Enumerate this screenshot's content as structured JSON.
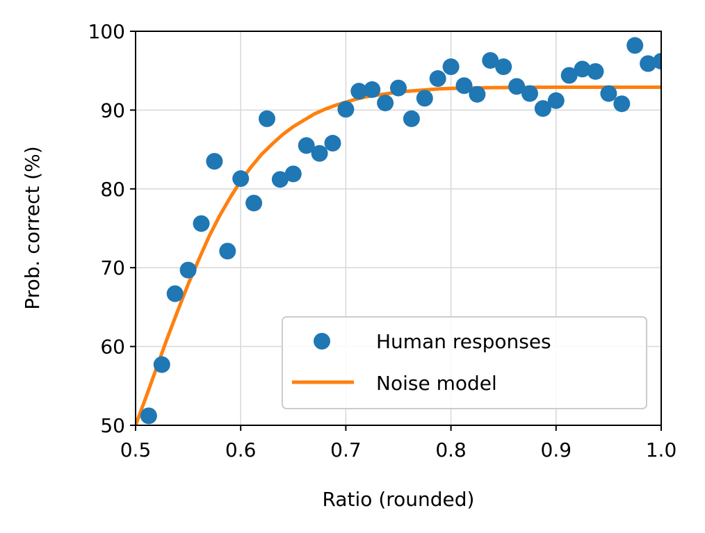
{
  "chart_data": {
    "type": "scatter",
    "title": "",
    "xlabel": "Ratio (rounded)",
    "ylabel": "Prob. correct (%)",
    "xlim": [
      0.5,
      1.0
    ],
    "ylim": [
      50,
      100
    ],
    "xticks": [
      "0.5",
      "0.6",
      "0.7",
      "0.8",
      "0.9",
      "1.0"
    ],
    "yticks": [
      "50",
      "60",
      "70",
      "80",
      "90",
      "100"
    ],
    "grid": true,
    "legend_position": "bottom-right",
    "series": [
      {
        "name": "Human responses",
        "kind": "scatter",
        "color": "#1f77b4",
        "x": [
          0.5125,
          0.525,
          0.5375,
          0.55,
          0.5625,
          0.575,
          0.5875,
          0.6,
          0.6125,
          0.625,
          0.6375,
          0.65,
          0.6625,
          0.675,
          0.6875,
          0.7,
          0.7125,
          0.725,
          0.7375,
          0.75,
          0.7625,
          0.775,
          0.7875,
          0.8,
          0.8125,
          0.825,
          0.8375,
          0.85,
          0.8625,
          0.875,
          0.8875,
          0.9,
          0.9125,
          0.925,
          0.9375,
          0.95,
          0.9625,
          0.975,
          0.9875,
          1.0
        ],
        "y": [
          51.2,
          57.7,
          66.7,
          69.7,
          75.6,
          83.5,
          72.1,
          81.3,
          78.2,
          88.9,
          81.2,
          81.9,
          85.5,
          84.5,
          85.8,
          90.1,
          92.4,
          92.6,
          90.9,
          92.8,
          88.9,
          91.5,
          94.0,
          95.5,
          93.1,
          92.0,
          96.3,
          95.5,
          93.0,
          92.1,
          90.2,
          91.2,
          94.4,
          95.2,
          94.9,
          92.1,
          90.8,
          98.2,
          95.9,
          96.2
        ]
      },
      {
        "name": "Noise model",
        "kind": "line",
        "color": "#ff7f0e",
        "x": [
          0.5,
          0.51,
          0.52,
          0.53,
          0.54,
          0.55,
          0.56,
          0.57,
          0.58,
          0.59,
          0.6,
          0.61,
          0.62,
          0.63,
          0.64,
          0.65,
          0.66,
          0.67,
          0.68,
          0.69,
          0.7,
          0.71,
          0.72,
          0.73,
          0.74,
          0.75,
          0.76,
          0.77,
          0.78,
          0.79,
          0.8,
          0.82,
          0.84,
          0.86,
          0.88,
          0.9,
          0.92,
          0.94,
          0.96,
          0.98,
          1.0
        ],
        "y": [
          50.0,
          53.6,
          57.3,
          61.0,
          64.5,
          67.9,
          71.0,
          74.0,
          76.6,
          78.9,
          81.0,
          82.8,
          84.4,
          85.7,
          86.9,
          87.9,
          88.7,
          89.5,
          90.1,
          90.6,
          91.0,
          91.4,
          91.7,
          91.9,
          92.1,
          92.3,
          92.4,
          92.5,
          92.6,
          92.7,
          92.75,
          92.8,
          92.85,
          92.87,
          92.89,
          92.9,
          92.9,
          92.9,
          92.9,
          92.9,
          92.9
        ]
      }
    ]
  }
}
